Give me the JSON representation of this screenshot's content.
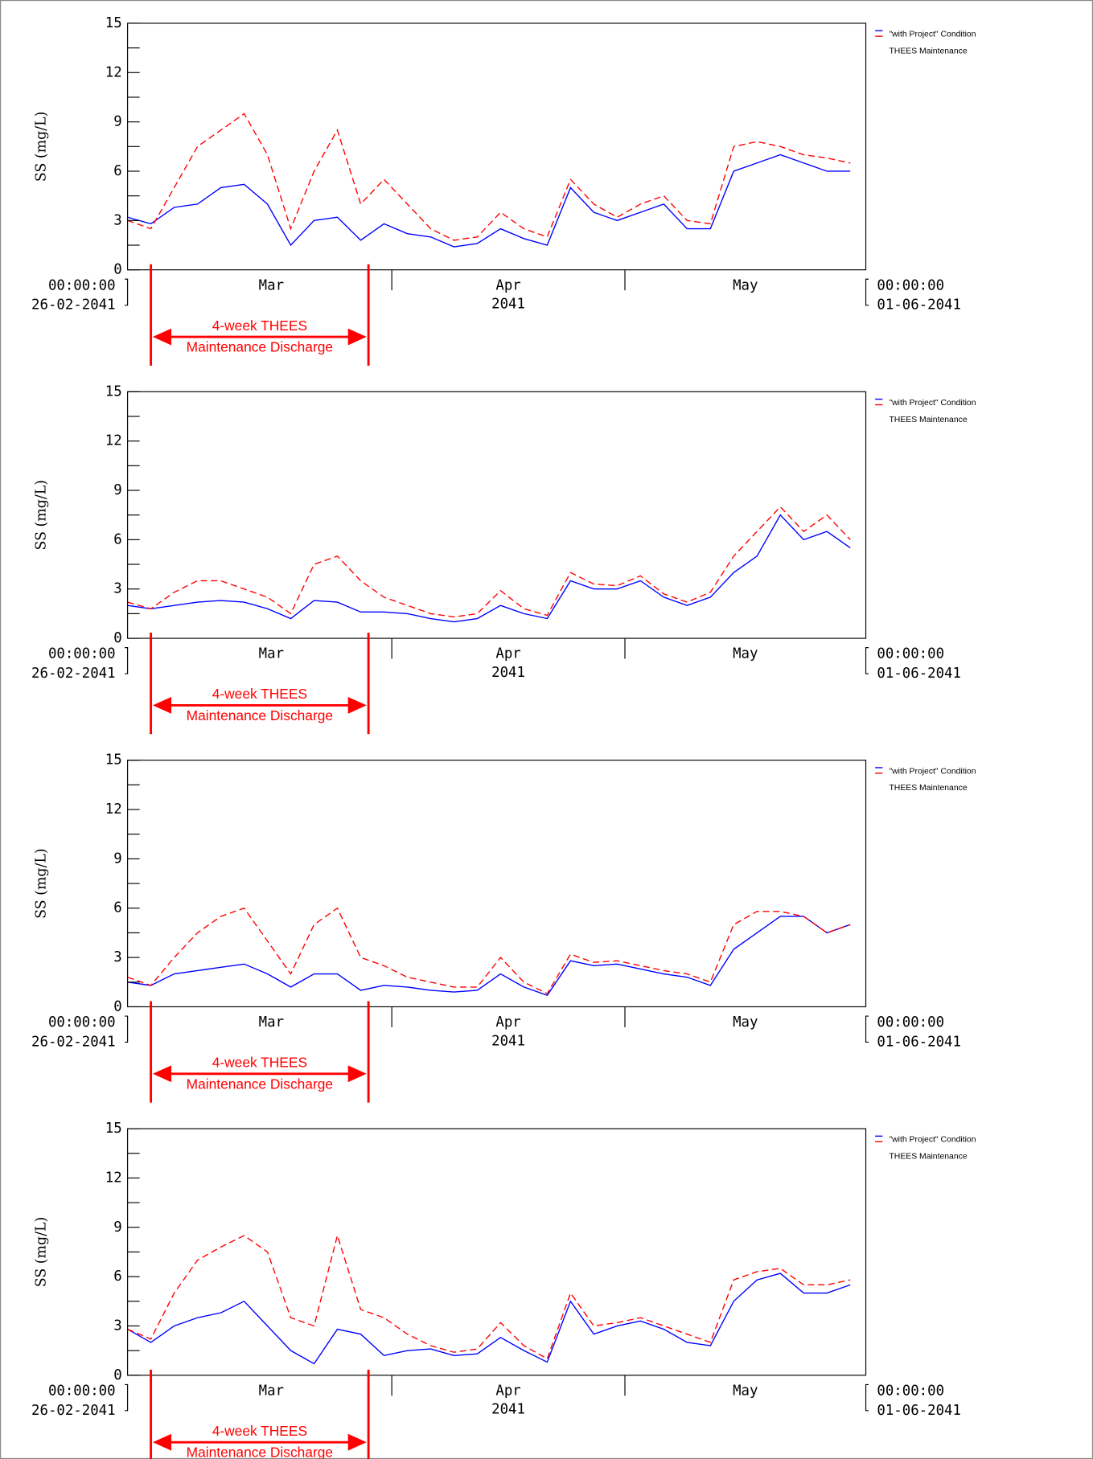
{
  "chart_data": [
    {
      "type": "line",
      "ylabel": "SS (mg/L)",
      "x": [
        "2041-02-26",
        "2041-03-01",
        "2041-03-04",
        "2041-03-07",
        "2041-03-10",
        "2041-03-13",
        "2041-03-16",
        "2041-03-19",
        "2041-03-22",
        "2041-03-25",
        "2041-03-28",
        "2041-03-31",
        "2041-04-03",
        "2041-04-06",
        "2041-04-09",
        "2041-04-12",
        "2041-04-15",
        "2041-04-18",
        "2041-04-21",
        "2041-04-24",
        "2041-04-27",
        "2041-04-30",
        "2041-05-03",
        "2041-05-06",
        "2041-05-09",
        "2041-05-12",
        "2041-05-15",
        "2041-05-18",
        "2041-05-21",
        "2041-05-24",
        "2041-05-27",
        "2041-05-30"
      ],
      "series": [
        {
          "name": "\"with Project\" Condition",
          "color": "#0000ff",
          "dashed": false,
          "values": [
            3.2,
            2.8,
            3.8,
            4.0,
            5.0,
            5.2,
            4.0,
            1.5,
            3.0,
            3.2,
            1.8,
            2.8,
            2.2,
            2.0,
            1.4,
            1.6,
            2.5,
            1.9,
            1.5,
            5.0,
            3.5,
            3.0,
            3.5,
            4.0,
            2.5,
            2.5,
            6.0,
            6.5,
            7.0,
            6.5,
            6.0,
            6.0
          ]
        },
        {
          "name": "THEES Maintenance",
          "color": "#ff0000",
          "dashed": true,
          "values": [
            3.0,
            2.5,
            5.0,
            7.5,
            8.5,
            9.5,
            7.0,
            2.5,
            6.0,
            8.5,
            4.0,
            5.5,
            4.0,
            2.5,
            1.8,
            2.0,
            3.5,
            2.5,
            2.0,
            5.5,
            4.0,
            3.2,
            4.0,
            4.5,
            3.0,
            2.8,
            7.5,
            7.8,
            7.5,
            7.0,
            6.8,
            6.5
          ]
        }
      ],
      "ylim": [
        0,
        15
      ],
      "yticks": [
        0,
        3,
        6,
        9,
        12,
        15
      ],
      "yminor": [
        1.5,
        4.5,
        7.5,
        10.5,
        13.5
      ],
      "xlim": [
        "2041-02-26",
        "2041-06-01"
      ],
      "xticks": [
        {
          "value": "2041-03-01",
          "label": "Mar"
        },
        {
          "value": "2041-04-01",
          "label": "Apr"
        },
        {
          "value": "2041-05-01",
          "label": "May"
        }
      ],
      "year_label": "2041",
      "start_label": [
        "00:00:00",
        "26-02-2041"
      ],
      "end_label": [
        "00:00:00",
        "01-06-2041"
      ],
      "annotation": {
        "span": [
          "2041-03-01",
          "2041-03-29"
        ],
        "text": [
          "4-week THEES",
          "Maintenance Discharge"
        ],
        "color": "#ff0000"
      }
    },
    {
      "type": "line",
      "ylabel": "SS (mg/L)",
      "x": [
        "2041-02-26",
        "2041-03-01",
        "2041-03-04",
        "2041-03-07",
        "2041-03-10",
        "2041-03-13",
        "2041-03-16",
        "2041-03-19",
        "2041-03-22",
        "2041-03-25",
        "2041-03-28",
        "2041-03-31",
        "2041-04-03",
        "2041-04-06",
        "2041-04-09",
        "2041-04-12",
        "2041-04-15",
        "2041-04-18",
        "2041-04-21",
        "2041-04-24",
        "2041-04-27",
        "2041-04-30",
        "2041-05-03",
        "2041-05-06",
        "2041-05-09",
        "2041-05-12",
        "2041-05-15",
        "2041-05-18",
        "2041-05-21",
        "2041-05-24",
        "2041-05-27",
        "2041-05-30"
      ],
      "series": [
        {
          "name": "\"with Project\" Condition",
          "color": "#0000ff",
          "dashed": false,
          "values": [
            2.0,
            1.8,
            2.0,
            2.2,
            2.3,
            2.2,
            1.8,
            1.2,
            2.3,
            2.2,
            1.6,
            1.6,
            1.5,
            1.2,
            1.0,
            1.2,
            2.0,
            1.5,
            1.2,
            3.5,
            3.0,
            3.0,
            3.5,
            2.5,
            2.0,
            2.5,
            4.0,
            5.0,
            7.5,
            6.0,
            6.5,
            5.5
          ]
        },
        {
          "name": "THEES Maintenance",
          "color": "#ff0000",
          "dashed": true,
          "values": [
            2.2,
            1.8,
            2.8,
            3.5,
            3.5,
            3.0,
            2.5,
            1.5,
            4.5,
            5.0,
            3.5,
            2.5,
            2.0,
            1.5,
            1.3,
            1.5,
            2.9,
            1.8,
            1.4,
            4.0,
            3.3,
            3.2,
            3.8,
            2.7,
            2.2,
            2.8,
            5.0,
            6.5,
            8.0,
            6.5,
            7.5,
            6.0
          ]
        }
      ],
      "ylim": [
        0,
        15
      ],
      "yticks": [
        0,
        3,
        6,
        9,
        12,
        15
      ],
      "yminor": [
        1.5,
        4.5,
        7.5,
        10.5,
        13.5
      ],
      "xlim": [
        "2041-02-26",
        "2041-06-01"
      ],
      "xticks": [
        {
          "value": "2041-03-01",
          "label": "Mar"
        },
        {
          "value": "2041-04-01",
          "label": "Apr"
        },
        {
          "value": "2041-05-01",
          "label": "May"
        }
      ],
      "year_label": "2041",
      "start_label": [
        "00:00:00",
        "26-02-2041"
      ],
      "end_label": [
        "00:00:00",
        "01-06-2041"
      ],
      "annotation": {
        "span": [
          "2041-03-01",
          "2041-03-29"
        ],
        "text": [
          "4-week THEES",
          "Maintenance Discharge"
        ],
        "color": "#ff0000"
      }
    },
    {
      "type": "line",
      "ylabel": "SS (mg/L)",
      "x": [
        "2041-02-26",
        "2041-03-01",
        "2041-03-04",
        "2041-03-07",
        "2041-03-10",
        "2041-03-13",
        "2041-03-16",
        "2041-03-19",
        "2041-03-22",
        "2041-03-25",
        "2041-03-28",
        "2041-03-31",
        "2041-04-03",
        "2041-04-06",
        "2041-04-09",
        "2041-04-12",
        "2041-04-15",
        "2041-04-18",
        "2041-04-21",
        "2041-04-24",
        "2041-04-27",
        "2041-04-30",
        "2041-05-03",
        "2041-05-06",
        "2041-05-09",
        "2041-05-12",
        "2041-05-15",
        "2041-05-18",
        "2041-05-21",
        "2041-05-24",
        "2041-05-27",
        "2041-05-30"
      ],
      "series": [
        {
          "name": "\"with Project\" Condition",
          "color": "#0000ff",
          "dashed": false,
          "values": [
            1.5,
            1.3,
            2.0,
            2.2,
            2.4,
            2.6,
            2.0,
            1.2,
            2.0,
            2.0,
            1.0,
            1.3,
            1.2,
            1.0,
            0.9,
            1.0,
            2.0,
            1.2,
            0.7,
            2.8,
            2.5,
            2.6,
            2.3,
            2.0,
            1.8,
            1.3,
            3.5,
            4.5,
            5.5,
            5.5,
            4.5,
            5.0
          ]
        },
        {
          "name": "THEES Maintenance",
          "color": "#ff0000",
          "dashed": true,
          "values": [
            1.8,
            1.3,
            3.0,
            4.5,
            5.5,
            6.0,
            4.0,
            2.0,
            5.0,
            6.0,
            3.0,
            2.5,
            1.8,
            1.5,
            1.2,
            1.2,
            3.0,
            1.5,
            0.8,
            3.2,
            2.7,
            2.8,
            2.5,
            2.2,
            2.0,
            1.5,
            5.0,
            5.8,
            5.8,
            5.5,
            4.5,
            5.0
          ]
        }
      ],
      "ylim": [
        0,
        15
      ],
      "yticks": [
        0,
        3,
        6,
        9,
        12,
        15
      ],
      "yminor": [
        1.5,
        4.5,
        7.5,
        10.5,
        13.5
      ],
      "xlim": [
        "2041-02-26",
        "2041-06-01"
      ],
      "xticks": [
        {
          "value": "2041-03-01",
          "label": "Mar"
        },
        {
          "value": "2041-04-01",
          "label": "Apr"
        },
        {
          "value": "2041-05-01",
          "label": "May"
        }
      ],
      "year_label": "2041",
      "start_label": [
        "00:00:00",
        "26-02-2041"
      ],
      "end_label": [
        "00:00:00",
        "01-06-2041"
      ],
      "annotation": {
        "span": [
          "2041-03-01",
          "2041-03-29"
        ],
        "text": [
          "4-week THEES",
          "Maintenance Discharge"
        ],
        "color": "#ff0000"
      }
    },
    {
      "type": "line",
      "ylabel": "SS (mg/L)",
      "x": [
        "2041-02-26",
        "2041-03-01",
        "2041-03-04",
        "2041-03-07",
        "2041-03-10",
        "2041-03-13",
        "2041-03-16",
        "2041-03-19",
        "2041-03-22",
        "2041-03-25",
        "2041-03-28",
        "2041-03-31",
        "2041-04-03",
        "2041-04-06",
        "2041-04-09",
        "2041-04-12",
        "2041-04-15",
        "2041-04-18",
        "2041-04-21",
        "2041-04-24",
        "2041-04-27",
        "2041-04-30",
        "2041-05-03",
        "2041-05-06",
        "2041-05-09",
        "2041-05-12",
        "2041-05-15",
        "2041-05-18",
        "2041-05-21",
        "2041-05-24",
        "2041-05-27",
        "2041-05-30"
      ],
      "series": [
        {
          "name": "\"with Project\" Condition",
          "color": "#0000ff",
          "dashed": false,
          "values": [
            2.8,
            2.0,
            3.0,
            3.5,
            3.8,
            4.5,
            3.0,
            1.5,
            0.7,
            2.8,
            2.5,
            1.2,
            1.5,
            1.6,
            1.2,
            1.3,
            2.3,
            1.5,
            0.8,
            4.5,
            2.5,
            3.0,
            3.3,
            2.8,
            2.0,
            1.8,
            4.5,
            5.8,
            6.2,
            5.0,
            5.0,
            5.5
          ]
        },
        {
          "name": "THEES Maintenance",
          "color": "#ff0000",
          "dashed": true,
          "values": [
            2.8,
            2.2,
            5.0,
            7.0,
            7.8,
            8.5,
            7.5,
            3.5,
            3.0,
            8.5,
            4.0,
            3.5,
            2.5,
            1.8,
            1.4,
            1.6,
            3.2,
            1.8,
            1.0,
            5.0,
            3.0,
            3.2,
            3.5,
            3.0,
            2.5,
            2.0,
            5.8,
            6.3,
            6.5,
            5.5,
            5.5,
            5.8
          ]
        }
      ],
      "ylim": [
        0,
        15
      ],
      "yticks": [
        0,
        3,
        6,
        9,
        12,
        15
      ],
      "yminor": [
        1.5,
        4.5,
        7.5,
        10.5,
        13.5
      ],
      "xlim": [
        "2041-02-26",
        "2041-06-01"
      ],
      "xticks": [
        {
          "value": "2041-03-01",
          "label": "Mar"
        },
        {
          "value": "2041-04-01",
          "label": "Apr"
        },
        {
          "value": "2041-05-01",
          "label": "May"
        }
      ],
      "year_label": "2041",
      "start_label": [
        "00:00:00",
        "26-02-2041"
      ],
      "end_label": [
        "00:00:00",
        "01-06-2041"
      ],
      "annotation": {
        "span": [
          "2041-03-01",
          "2041-03-29"
        ],
        "text": [
          "4-week THEES",
          "Maintenance Discharge"
        ],
        "color": "#ff0000"
      }
    }
  ]
}
